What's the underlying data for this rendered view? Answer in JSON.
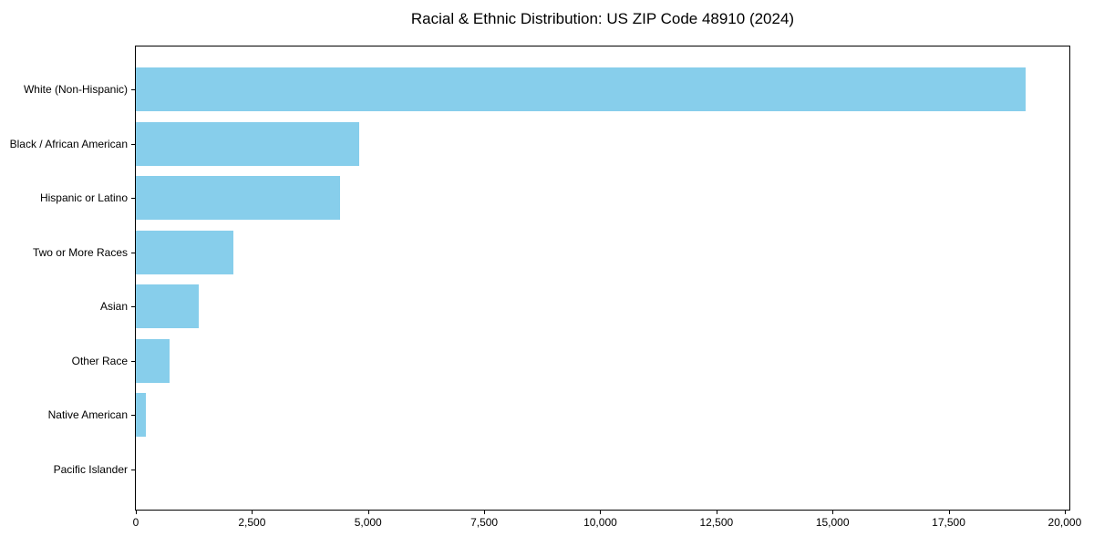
{
  "chart_data": {
    "type": "bar",
    "orientation": "horizontal",
    "title": "Racial & Ethnic Distribution: US ZIP Code 48910 (2024)",
    "xlabel": "",
    "ylabel": "",
    "categories": [
      "White (Non-Hispanic)",
      "Black / African American",
      "Hispanic or Latino",
      "Two or More Races",
      "Asian",
      "Other Race",
      "Native American",
      "Pacific Islander"
    ],
    "values": [
      19150,
      4800,
      4400,
      2100,
      1350,
      730,
      220,
      0
    ],
    "xlim": [
      0,
      20100
    ],
    "x_ticks": [
      0,
      2500,
      5000,
      7500,
      10000,
      12500,
      15000,
      17500,
      20000
    ],
    "x_tick_labels": [
      "0",
      "2,500",
      "5,000",
      "7,500",
      "10,000",
      "12,500",
      "15,000",
      "17,500",
      "20,000"
    ],
    "grid": false,
    "legend": null,
    "colors": {
      "bar": "#87CEEB",
      "background": "#ffffff",
      "spine": "#000000",
      "text": "#000000"
    }
  }
}
